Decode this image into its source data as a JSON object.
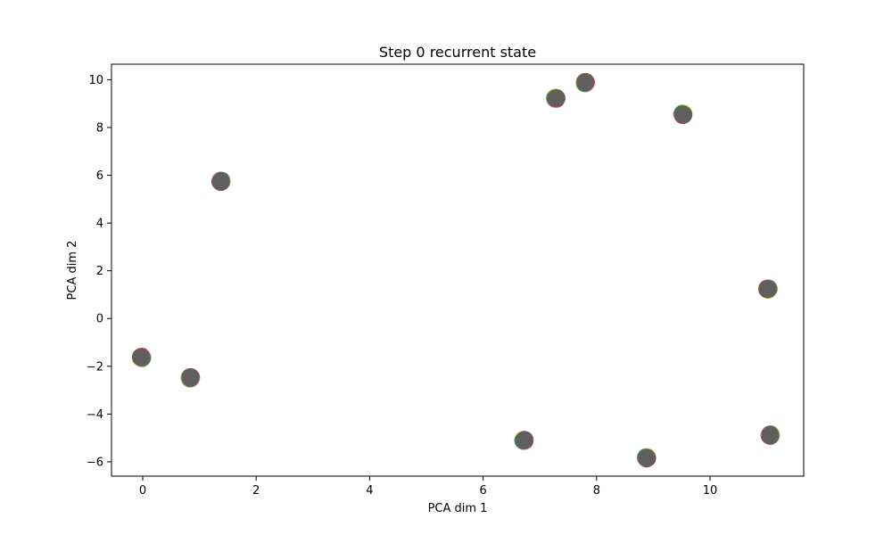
{
  "chart_data": {
    "type": "scatter",
    "title": "Step 0 recurrent state",
    "xlabel": "PCA dim 1",
    "ylabel": "PCA dim 2",
    "xlim": [
      -0.55,
      11.65
    ],
    "ylim": [
      -6.6,
      10.65
    ],
    "x_ticks": [
      0,
      2,
      4,
      6,
      8,
      10
    ],
    "y_ticks": [
      -6,
      -4,
      -2,
      0,
      2,
      4,
      6,
      8,
      10
    ],
    "grid": false,
    "legend": "none",
    "marker_color": "#5f5f5f",
    "outline_colors": [
      "#d62728",
      "#e377c2",
      "#2ca02c",
      "#bcbd22",
      "#8c564b"
    ],
    "points": [
      {
        "x": 7.8,
        "y": 9.88
      },
      {
        "x": 7.28,
        "y": 9.22
      },
      {
        "x": 9.52,
        "y": 8.55
      },
      {
        "x": 1.38,
        "y": 5.75
      },
      {
        "x": 11.02,
        "y": 1.24
      },
      {
        "x": -0.02,
        "y": -1.63
      },
      {
        "x": 0.84,
        "y": -2.48
      },
      {
        "x": 6.72,
        "y": -5.1
      },
      {
        "x": 8.88,
        "y": -5.83
      },
      {
        "x": 11.06,
        "y": -4.88
      }
    ]
  }
}
